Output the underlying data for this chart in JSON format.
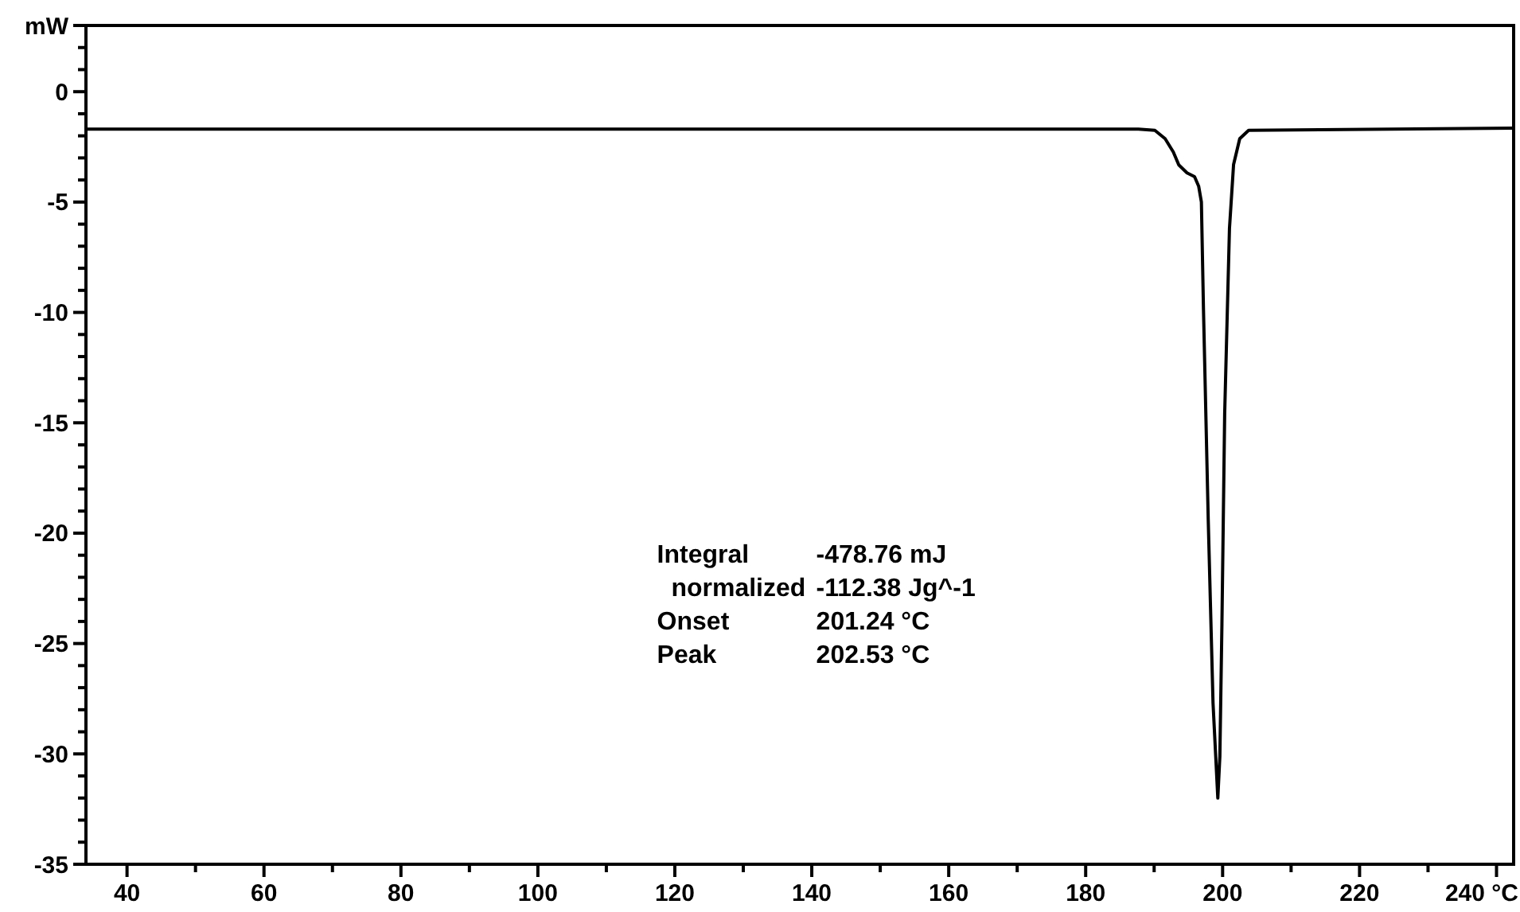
{
  "chart_data": {
    "type": "line",
    "x": [
      34,
      100,
      187.7,
      190.1,
      191.6,
      192.8,
      193.6,
      194.8,
      195.9,
      196.5,
      196.9,
      197.2,
      197.9,
      198.6,
      199.3,
      199.6,
      199.9,
      200.3,
      201.0,
      201.6,
      202.5,
      203.8,
      214.2,
      242.5
    ],
    "series": [
      {
        "color": "#000000",
        "values": [
          -1.7,
          -1.7,
          -1.7,
          -1.75,
          -2.13,
          -2.73,
          -3.32,
          -3.68,
          -3.85,
          -4.28,
          -5.0,
          -9.8,
          -19.4,
          -27.7,
          -32.0,
          -30.1,
          -24.1,
          -14.6,
          -6.2,
          -3.3,
          -2.13,
          -1.75,
          -1.72,
          -1.65
        ]
      }
    ],
    "xlim": [
      34,
      242.5
    ],
    "xticks": [
      40,
      {
        "value": 50,
        "label": null
      },
      60,
      {
        "value": 70,
        "label": null
      },
      80,
      {
        "value": 90,
        "label": null
      },
      100,
      {
        "value": 110,
        "label": null
      },
      120,
      {
        "value": 130,
        "label": null
      },
      140,
      {
        "value": 150,
        "label": null
      },
      160,
      {
        "value": 170,
        "label": null
      },
      180,
      {
        "value": 190,
        "label": null
      },
      200,
      {
        "value": 210,
        "label": null
      },
      220,
      {
        "value": 230,
        "label": null
      },
      {
        "value": 240,
        "label": "240 °C"
      }
    ],
    "ylim": [
      -35,
      3
    ],
    "yticks": [
      -35,
      {
        "value": -34,
        "label": null
      },
      {
        "value": -33,
        "label": null
      },
      {
        "value": -32,
        "label": null
      },
      {
        "value": -31,
        "label": null
      },
      -30,
      {
        "value": -29,
        "label": null
      },
      {
        "value": -28,
        "label": null
      },
      {
        "value": -27,
        "label": null
      },
      {
        "value": -26,
        "label": null
      },
      -25,
      {
        "value": -24,
        "label": null
      },
      {
        "value": -23,
        "label": null
      },
      {
        "value": -22,
        "label": null
      },
      {
        "value": -21,
        "label": null
      },
      -20,
      {
        "value": -19,
        "label": null
      },
      {
        "value": -18,
        "label": null
      },
      {
        "value": -17,
        "label": null
      },
      {
        "value": -16,
        "label": null
      },
      -15,
      {
        "value": -14,
        "label": null
      },
      {
        "value": -13,
        "label": null
      },
      {
        "value": -12,
        "label": null
      },
      {
        "value": -11,
        "label": null
      },
      -10,
      {
        "value": -9,
        "label": null
      },
      {
        "value": -8,
        "label": null
      },
      {
        "value": -7,
        "label": null
      },
      {
        "value": -6,
        "label": null
      },
      -5,
      {
        "value": -4,
        "label": null
      },
      {
        "value": -3,
        "label": null
      },
      {
        "value": -2,
        "label": null
      },
      {
        "value": -1,
        "label": null
      },
      0,
      {
        "value": 1,
        "label": null
      },
      {
        "value": 2,
        "label": null
      },
      {
        "value": 3,
        "label": "mW"
      }
    ],
    "annotations": [
      "Integral\t-478.76 mJ",
      "  normalized\t-112.38 Jg^-1",
      "Onset\t201.24 °C",
      "Peak\t202.53 °C"
    ],
    "grid": false,
    "marker": "none",
    "line_style": "solid"
  }
}
